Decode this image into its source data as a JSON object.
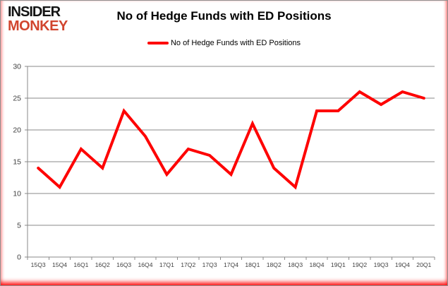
{
  "logo": {
    "line1": "INSIDER",
    "line2": "MONKEY",
    "brand_color": "#d1452e",
    "text_color": "#141414"
  },
  "header": {
    "title": "No of Hedge Funds with ED Positions"
  },
  "legend": {
    "label": "No of Hedge Funds with ED Positions",
    "line_color": "#fe0000"
  },
  "chart_data": {
    "type": "line",
    "title": "No of Hedge Funds with ED Positions",
    "categories": [
      "15Q3",
      "15Q4",
      "16Q1",
      "16Q2",
      "16Q3",
      "16Q4",
      "17Q1",
      "17Q2",
      "17Q3",
      "17Q4",
      "18Q1",
      "18Q2",
      "18Q3",
      "18Q4",
      "19Q1",
      "19Q2",
      "19Q3",
      "19Q4",
      "20Q1"
    ],
    "series": [
      {
        "name": "No of Hedge Funds with ED Positions",
        "color": "#fe0000",
        "values": [
          14,
          11,
          17,
          14,
          23,
          19,
          13,
          17,
          16,
          13,
          21,
          14,
          11,
          23,
          23,
          26,
          24,
          26,
          25
        ]
      }
    ],
    "xlabel": "",
    "ylabel": "",
    "ylim": [
      0,
      30
    ],
    "yticks": [
      0,
      5,
      10,
      15,
      20,
      25,
      30
    ],
    "grid": true,
    "legend_position": "top-center",
    "gridline_color": "#898989",
    "axis_color": "#898989",
    "tick_label_color": "#3f3f3f",
    "background_color": "#ffffff"
  }
}
